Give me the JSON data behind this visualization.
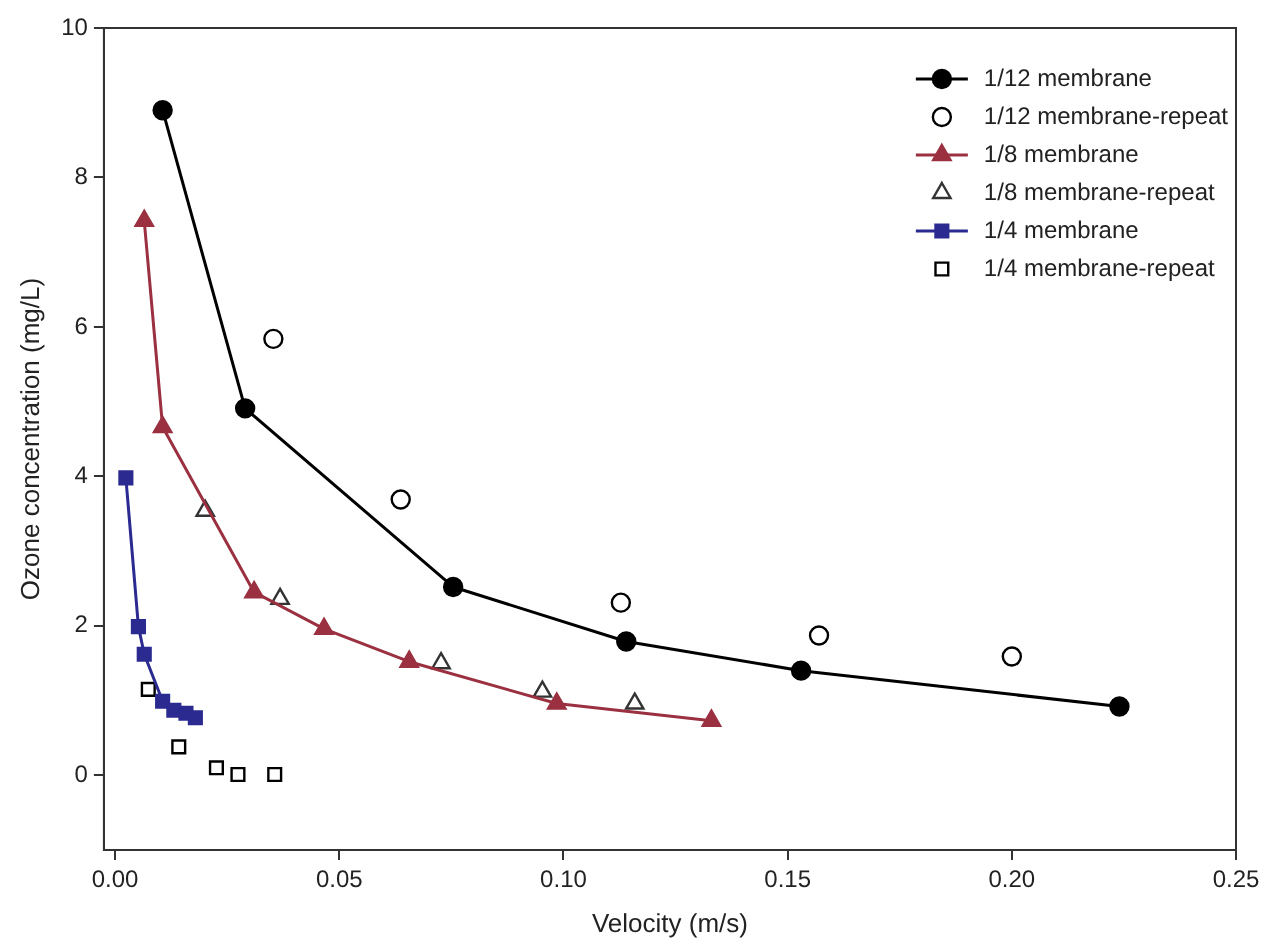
{
  "chart_data": {
    "type": "line",
    "xlabel": "Velocity (m/s)",
    "ylabel": "Ozone concentration (mg/L)",
    "xlim": [
      -0.0025,
      0.25
    ],
    "ylim": [
      -1,
      10
    ],
    "xticks": [
      {
        "value": 0,
        "label": "0.00"
      },
      {
        "value": 0.05,
        "label": "0.05"
      },
      {
        "value": 0.1,
        "label": "0.10"
      },
      {
        "value": 0.15,
        "label": "0.15"
      },
      {
        "value": 0.2,
        "label": "0.20"
      },
      {
        "value": 0.25,
        "label": "0.25"
      }
    ],
    "yticks": [
      0,
      2,
      4,
      6,
      8,
      10
    ],
    "grid": false,
    "legend": "top right",
    "line_style": "solid",
    "series": [
      {
        "name": "1/12 membrane",
        "type": "line",
        "marker": "circle",
        "color": "#000000",
        "x": [
          0.0106,
          0.029,
          0.0754,
          0.114,
          0.153,
          0.224
        ],
        "values": [
          8.9,
          4.91,
          2.52,
          1.79,
          1.4,
          0.92
        ]
      },
      {
        "name": "1/12 membrane-repeat",
        "type": "scatter",
        "marker": "circle",
        "color": "#000000",
        "x": [
          0.0353,
          0.0637,
          0.1128,
          0.157,
          0.2
        ],
        "values": [
          5.84,
          3.69,
          2.31,
          1.87,
          1.59
        ]
      },
      {
        "name": "1/8 membrane",
        "type": "line",
        "marker": "triangle",
        "color": "#9a3040",
        "x": [
          0.0065,
          0.0106,
          0.031,
          0.0466,
          0.0656,
          0.0985,
          0.133
        ],
        "values": [
          7.42,
          4.66,
          2.45,
          1.96,
          1.52,
          0.96,
          0.73
        ]
      },
      {
        "name": "1/8 membrane-repeat",
        "type": "scatter",
        "marker": "triangle",
        "color": "#333333",
        "x": [
          0.0201,
          0.0368,
          0.0727,
          0.0953,
          0.1159
        ],
        "values": [
          3.54,
          2.36,
          1.5,
          1.12,
          0.96
        ]
      },
      {
        "name": "1/4 membrane",
        "type": "line",
        "marker": "square",
        "color": "#2a2a90",
        "x": [
          0.0024,
          0.0052,
          0.0065,
          0.0106,
          0.0131,
          0.0158,
          0.0179
        ],
        "values": [
          3.98,
          1.99,
          1.62,
          0.99,
          0.87,
          0.83,
          0.77
        ]
      },
      {
        "name": "1/4 membrane-repeat",
        "type": "scatter",
        "marker": "square",
        "color": "#000000",
        "x": [
          0.0074,
          0.0142,
          0.0226,
          0.0274,
          0.0356
        ],
        "values": [
          1.15,
          0.38,
          0.1,
          0.01,
          0.01
        ]
      }
    ]
  }
}
